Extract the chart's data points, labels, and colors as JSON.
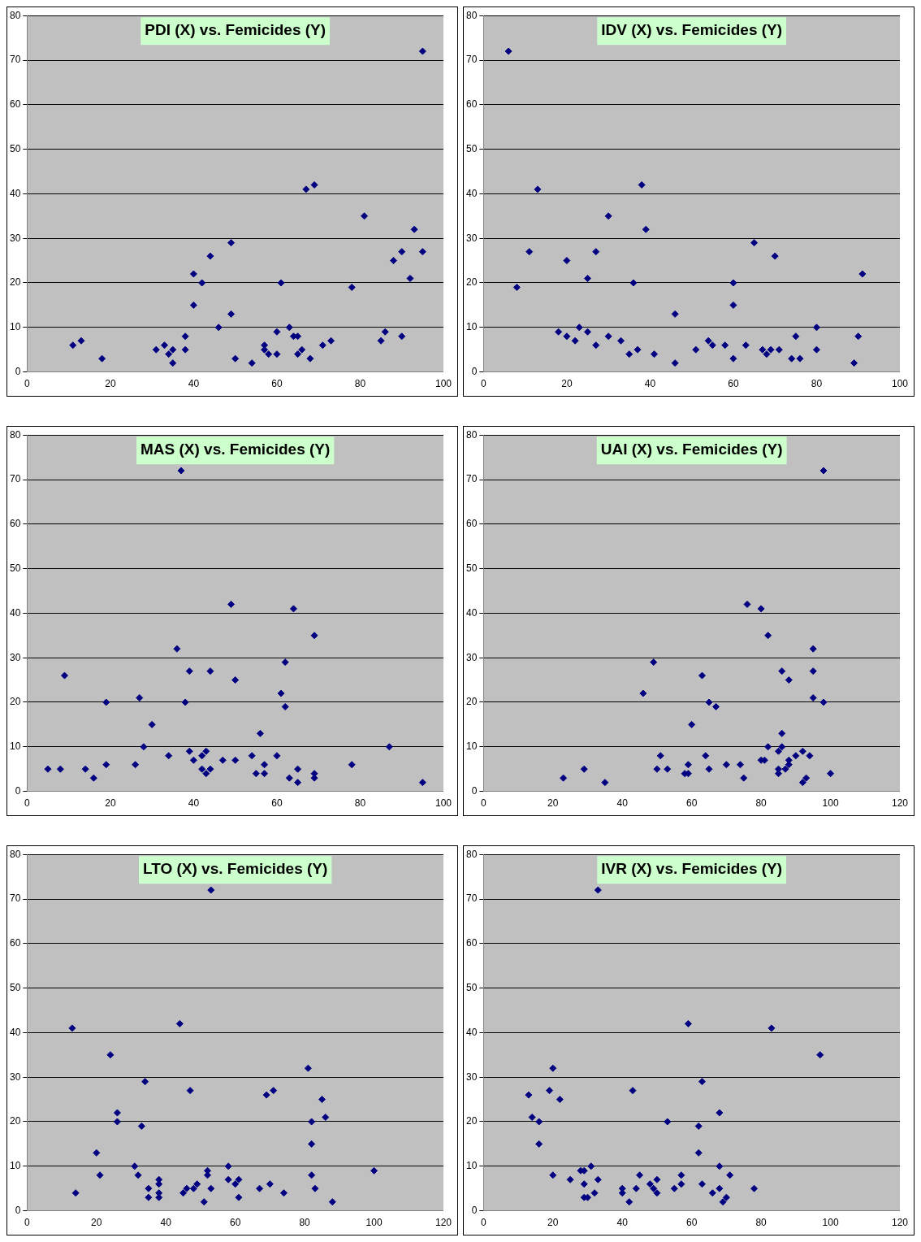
{
  "chart_data": [
    {
      "type": "scatter",
      "title": "PDI (X) vs. Femicides (Y)",
      "color": "#000080",
      "marker": "diamond",
      "grid": "y",
      "xlim": [
        0,
        100
      ],
      "xticks": [
        0,
        20,
        40,
        60,
        80,
        100
      ],
      "ylim": [
        0,
        80
      ],
      "yticks": [
        0,
        10,
        20,
        30,
        40,
        50,
        60,
        70,
        80
      ],
      "x": [
        11,
        13,
        18,
        31,
        33,
        34,
        35,
        35,
        38,
        38,
        40,
        40,
        42,
        44,
        46,
        49,
        49,
        50,
        54,
        57,
        57,
        58,
        60,
        60,
        61,
        63,
        64,
        65,
        65,
        66,
        67,
        68,
        69,
        71,
        73,
        78,
        81,
        85,
        86,
        88,
        90,
        90,
        92,
        93,
        95,
        95
      ],
      "values": [
        6,
        7,
        3,
        5,
        6,
        4,
        5,
        2,
        5,
        8,
        15,
        22,
        20,
        26,
        10,
        29,
        13,
        3,
        2,
        6,
        5,
        4,
        4,
        9,
        20,
        10,
        8,
        8,
        4,
        5,
        41,
        3,
        42,
        6,
        7,
        19,
        35,
        7,
        9,
        25,
        27,
        8,
        21,
        32,
        27,
        72
      ]
    },
    {
      "type": "scatter",
      "title": "IDV (X) vs. Femicides (Y)",
      "color": "#000080",
      "marker": "diamond",
      "grid": "y",
      "xlim": [
        0,
        100
      ],
      "xticks": [
        0,
        20,
        40,
        60,
        80,
        100
      ],
      "ylim": [
        0,
        80
      ],
      "yticks": [
        0,
        10,
        20,
        30,
        40,
        50,
        60,
        70,
        80
      ],
      "x": [
        6,
        8,
        11,
        13,
        18,
        20,
        20,
        22,
        23,
        25,
        25,
        27,
        27,
        30,
        30,
        33,
        35,
        36,
        37,
        38,
        39,
        41,
        46,
        46,
        51,
        54,
        55,
        58,
        60,
        60,
        60,
        63,
        65,
        67,
        68,
        69,
        70,
        71,
        74,
        75,
        76,
        80,
        80,
        89,
        90,
        91
      ],
      "values": [
        72,
        19,
        27,
        41,
        9,
        25,
        8,
        7,
        10,
        9,
        21,
        27,
        6,
        35,
        8,
        7,
        4,
        20,
        5,
        42,
        32,
        4,
        13,
        2,
        5,
        7,
        6,
        6,
        20,
        15,
        3,
        6,
        29,
        5,
        4,
        5,
        26,
        5,
        3,
        8,
        3,
        10,
        5,
        2,
        8,
        22
      ]
    },
    {
      "type": "scatter",
      "title": "MAS (X) vs. Femicides (Y)",
      "color": "#000080",
      "marker": "diamond",
      "grid": "y",
      "xlim": [
        0,
        100
      ],
      "xticks": [
        0,
        20,
        40,
        60,
        80,
        100
      ],
      "ylim": [
        0,
        80
      ],
      "yticks": [
        0,
        10,
        20,
        30,
        40,
        50,
        60,
        70,
        80
      ],
      "x": [
        5,
        8,
        9,
        14,
        16,
        19,
        19,
        26,
        27,
        28,
        30,
        34,
        36,
        37,
        38,
        39,
        39,
        40,
        42,
        42,
        43,
        43,
        44,
        44,
        47,
        49,
        50,
        50,
        54,
        55,
        56,
        57,
        57,
        60,
        61,
        62,
        62,
        63,
        64,
        65,
        65,
        69,
        69,
        69,
        78,
        87,
        95
      ],
      "values": [
        5,
        5,
        26,
        5,
        3,
        20,
        6,
        6,
        21,
        10,
        15,
        8,
        32,
        72,
        20,
        27,
        9,
        7,
        5,
        8,
        4,
        9,
        27,
        5,
        7,
        42,
        25,
        7,
        8,
        4,
        13,
        4,
        6,
        8,
        22,
        19,
        29,
        3,
        41,
        5,
        2,
        35,
        4,
        3,
        6,
        10,
        2
      ]
    },
    {
      "type": "scatter",
      "title": "UAI (X) vs. Femicides (Y)",
      "color": "#000080",
      "marker": "diamond",
      "grid": "y",
      "xlim": [
        0,
        120
      ],
      "xticks": [
        0,
        20,
        40,
        60,
        80,
        100,
        120
      ],
      "ylim": [
        0,
        80
      ],
      "yticks": [
        0,
        10,
        20,
        30,
        40,
        50,
        60,
        70,
        80
      ],
      "x": [
        23,
        29,
        35,
        46,
        49,
        50,
        51,
        53,
        58,
        59,
        59,
        60,
        63,
        64,
        65,
        65,
        67,
        70,
        74,
        75,
        76,
        80,
        80,
        81,
        82,
        82,
        85,
        85,
        85,
        86,
        86,
        86,
        87,
        88,
        88,
        88,
        90,
        92,
        92,
        93,
        94,
        95,
        95,
        95,
        98,
        98,
        100
      ],
      "values": [
        3,
        5,
        2,
        22,
        29,
        5,
        8,
        5,
        4,
        4,
        6,
        15,
        26,
        8,
        5,
        20,
        19,
        6,
        6,
        3,
        42,
        7,
        41,
        7,
        10,
        35,
        4,
        5,
        9,
        10,
        13,
        27,
        5,
        6,
        7,
        25,
        8,
        9,
        2,
        3,
        8,
        21,
        27,
        32,
        20,
        72,
        4
      ]
    },
    {
      "type": "scatter",
      "title": "LTO (X) vs. Femicides (Y)",
      "color": "#000080",
      "marker": "diamond",
      "grid": "y",
      "xlim": [
        0,
        120
      ],
      "xticks": [
        0,
        20,
        40,
        60,
        80,
        100,
        120
      ],
      "ylim": [
        0,
        80
      ],
      "yticks": [
        0,
        10,
        20,
        30,
        40,
        50,
        60,
        70,
        80
      ],
      "x": [
        13,
        14,
        20,
        21,
        24,
        26,
        26,
        31,
        32,
        33,
        34,
        35,
        35,
        38,
        38,
        38,
        38,
        44,
        45,
        46,
        47,
        48,
        49,
        51,
        52,
        52,
        53,
        53,
        58,
        58,
        60,
        61,
        61,
        67,
        69,
        70,
        71,
        74,
        81,
        82,
        82,
        82,
        83,
        85,
        86,
        88,
        100
      ],
      "values": [
        41,
        4,
        13,
        8,
        35,
        22,
        20,
        10,
        8,
        19,
        29,
        5,
        3,
        7,
        6,
        4,
        3,
        42,
        4,
        5,
        27,
        5,
        6,
        2,
        9,
        8,
        5,
        72,
        10,
        7,
        6,
        7,
        3,
        5,
        26,
        6,
        27,
        4,
        32,
        20,
        15,
        8,
        5,
        25,
        21,
        2,
        9
      ]
    },
    {
      "type": "scatter",
      "title": "IVR (X) vs. Femicides (Y)",
      "color": "#000080",
      "marker": "diamond",
      "grid": "y",
      "xlim": [
        0,
        120
      ],
      "xticks": [
        0,
        20,
        40,
        60,
        80,
        100,
        120
      ],
      "ylim": [
        0,
        80
      ],
      "yticks": [
        0,
        10,
        20,
        30,
        40,
        50,
        60,
        70,
        80
      ],
      "x": [
        13,
        14,
        16,
        16,
        19,
        20,
        20,
        22,
        25,
        28,
        29,
        29,
        29,
        30,
        31,
        32,
        33,
        33,
        40,
        40,
        42,
        43,
        44,
        45,
        48,
        49,
        50,
        50,
        53,
        55,
        57,
        57,
        59,
        62,
        62,
        63,
        63,
        66,
        68,
        68,
        68,
        69,
        70,
        71,
        78,
        83,
        97
      ],
      "values": [
        26,
        21,
        20,
        15,
        27,
        32,
        8,
        25,
        7,
        9,
        9,
        6,
        3,
        3,
        10,
        4,
        7,
        72,
        5,
        4,
        2,
        27,
        5,
        8,
        6,
        5,
        7,
        4,
        20,
        5,
        6,
        8,
        42,
        19,
        13,
        29,
        6,
        4,
        22,
        10,
        5,
        2,
        3,
        8,
        5,
        41,
        35
      ]
    }
  ]
}
